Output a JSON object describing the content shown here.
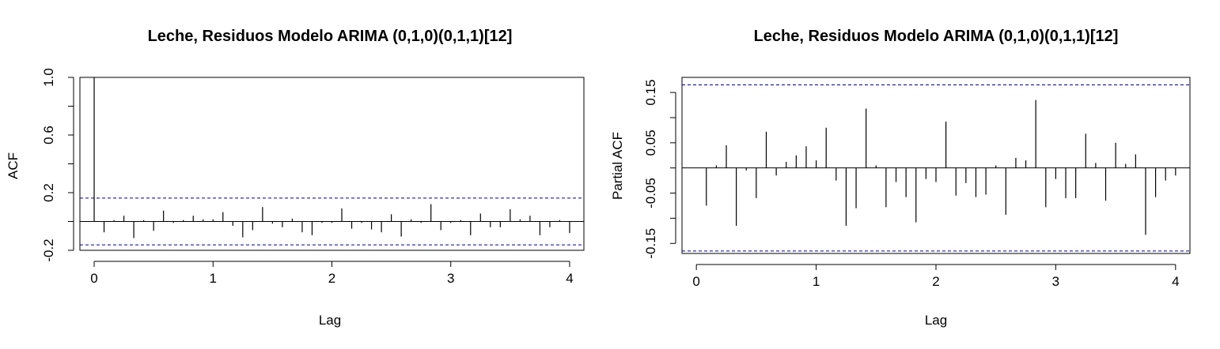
{
  "chart_data": [
    {
      "type": "bar",
      "title": "Leche, Residuos Modelo ARIMA (0,1,0)(0,1,1)[12]",
      "xlabel": "Lag",
      "ylabel": "ACF",
      "xlim": [
        -0.12,
        4.12
      ],
      "ylim": [
        -0.2,
        1.0
      ],
      "xticks": [
        0,
        1,
        2,
        3,
        4
      ],
      "yticks": [
        -0.2,
        0.2,
        0.6,
        1.0
      ],
      "ytick_labels": [
        "-0.2",
        "0.2",
        "0.6",
        "1.0"
      ],
      "ci_bound": 0.162,
      "ci_color": "#00008b",
      "lag": [
        0,
        0.0833,
        0.1667,
        0.25,
        0.3333,
        0.4167,
        0.5,
        0.5833,
        0.6667,
        0.75,
        0.8333,
        0.9167,
        1.0,
        1.0833,
        1.1667,
        1.25,
        1.3333,
        1.4167,
        1.5,
        1.5833,
        1.6667,
        1.75,
        1.8333,
        1.9167,
        2.0,
        2.0833,
        2.1667,
        2.25,
        2.3333,
        2.4167,
        2.5,
        2.5833,
        2.6667,
        2.75,
        2.8333,
        2.9167,
        3.0,
        3.0833,
        3.1667,
        3.25,
        3.3333,
        3.4167,
        3.5,
        3.5833,
        3.6667,
        3.75,
        3.8333,
        3.9167,
        4.0
      ],
      "values": [
        1.0,
        -0.075,
        0.01,
        0.04,
        -0.115,
        0.01,
        -0.065,
        0.075,
        -0.01,
        0.01,
        0.04,
        0.015,
        0.015,
        0.065,
        -0.03,
        -0.11,
        -0.06,
        0.1,
        -0.015,
        -0.04,
        0.02,
        -0.075,
        -0.095,
        -0.01,
        -0.01,
        0.09,
        -0.05,
        -0.01,
        -0.055,
        -0.075,
        0.05,
        -0.105,
        0.015,
        -0.01,
        0.12,
        -0.06,
        -0.01,
        0.01,
        -0.095,
        0.055,
        -0.04,
        -0.04,
        0.085,
        0.015,
        0.04,
        -0.095,
        -0.04,
        0.01,
        -0.08
      ]
    },
    {
      "type": "bar",
      "title": "Leche, Residuos Modelo ARIMA (0,1,0)(0,1,1)[12]",
      "xlabel": "Lag",
      "ylabel": "Partial ACF",
      "xlim": [
        -0.12,
        4.12
      ],
      "ylim": [
        -0.17,
        0.18
      ],
      "xticks": [
        0,
        1,
        2,
        3,
        4
      ],
      "yticks": [
        -0.15,
        -0.05,
        0.05,
        0.15
      ],
      "ytick_labels": [
        "-0.15",
        "-0.05",
        "0.05",
        "0.15"
      ],
      "ci_bound": 0.165,
      "ci_color": "#00008b",
      "lag": [
        0.0833,
        0.1667,
        0.25,
        0.3333,
        0.4167,
        0.5,
        0.5833,
        0.6667,
        0.75,
        0.8333,
        0.9167,
        1.0,
        1.0833,
        1.1667,
        1.25,
        1.3333,
        1.4167,
        1.5,
        1.5833,
        1.6667,
        1.75,
        1.8333,
        1.9167,
        2.0,
        2.0833,
        2.1667,
        2.25,
        2.3333,
        2.4167,
        2.5,
        2.5833,
        2.6667,
        2.75,
        2.8333,
        2.9167,
        3.0,
        3.0833,
        3.1667,
        3.25,
        3.3333,
        3.4167,
        3.5,
        3.5833,
        3.6667,
        3.75,
        3.8333,
        3.9167,
        4.0
      ],
      "values": [
        -0.075,
        0.005,
        0.045,
        -0.115,
        -0.005,
        -0.06,
        0.072,
        -0.015,
        0.012,
        0.025,
        0.043,
        0.015,
        0.08,
        -0.025,
        -0.115,
        -0.08,
        0.118,
        0.005,
        -0.078,
        -0.028,
        -0.058,
        -0.108,
        -0.022,
        -0.028,
        0.092,
        -0.055,
        -0.03,
        -0.058,
        -0.053,
        0.005,
        -0.093,
        0.02,
        0.015,
        0.135,
        -0.078,
        -0.022,
        -0.06,
        -0.06,
        0.068,
        0.01,
        -0.065,
        0.05,
        0.008,
        0.027,
        -0.133,
        -0.058,
        -0.025,
        -0.015
      ]
    }
  ]
}
